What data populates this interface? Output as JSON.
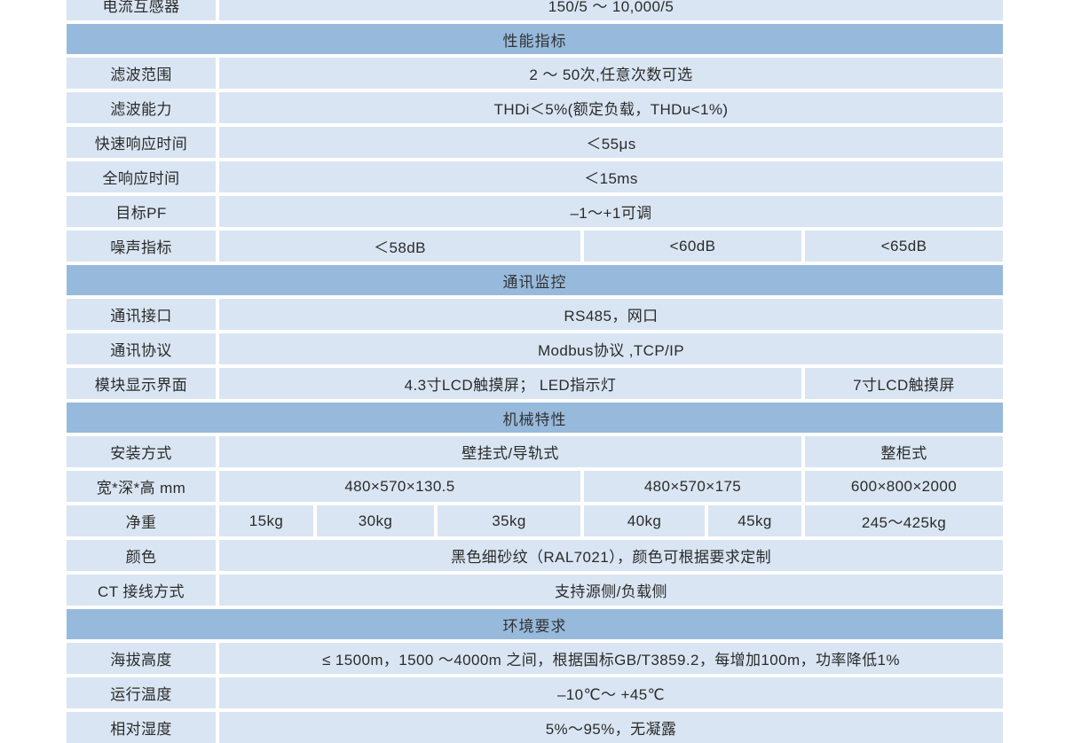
{
  "table": {
    "colors": {
      "section_header_bg": "#97badc",
      "row_bg": "#d9e5f2",
      "text": "#2b2b2b",
      "page_bg": "#ffffff"
    },
    "rows": [
      {
        "kind": "data",
        "label": "电流互感器",
        "cells": [
          {
            "text": "150/5 ～ 10,000/5",
            "span": 6
          }
        ]
      },
      {
        "kind": "header",
        "title": "性能指标"
      },
      {
        "kind": "data",
        "label": "滤波范围",
        "cells": [
          {
            "text": "2 ～ 50次,任意次数可选",
            "span": 6
          }
        ]
      },
      {
        "kind": "data",
        "label": "滤波能力",
        "cells": [
          {
            "text": "THDi＜5%(额定负载，THDu<1%)",
            "span": 6
          }
        ]
      },
      {
        "kind": "data",
        "label": "快速响应时间",
        "cells": [
          {
            "text": "＜55μs",
            "span": 6
          }
        ]
      },
      {
        "kind": "data",
        "label": "全响应时间",
        "cells": [
          {
            "text": "＜15ms",
            "span": 6
          }
        ]
      },
      {
        "kind": "data",
        "label": "目标PF",
        "cells": [
          {
            "text": "–1～+1可调",
            "span": 6
          }
        ]
      },
      {
        "kind": "data",
        "label": "噪声指标",
        "cells": [
          {
            "text": "＜58dB",
            "span": 3
          },
          {
            "text": "<60dB",
            "span": 2
          },
          {
            "text": "<65dB",
            "span": 1
          }
        ]
      },
      {
        "kind": "header",
        "title": "通讯监控"
      },
      {
        "kind": "data",
        "label": "通讯接口",
        "cells": [
          {
            "text": "RS485，网口",
            "span": 6
          }
        ]
      },
      {
        "kind": "data",
        "label": "通讯协议",
        "cells": [
          {
            "text": "Modbus协议 ,TCP/IP",
            "span": 6
          }
        ]
      },
      {
        "kind": "data",
        "label": "模块显示界面",
        "cells": [
          {
            "text": "4.3寸LCD触摸屏； LED指示灯",
            "span": 5
          },
          {
            "text": "7寸LCD触摸屏",
            "span": 1
          }
        ]
      },
      {
        "kind": "header",
        "title": "机械特性"
      },
      {
        "kind": "data",
        "label": "安装方式",
        "cells": [
          {
            "text": "壁挂式/导轨式",
            "span": 5
          },
          {
            "text": "整柜式",
            "span": 1
          }
        ]
      },
      {
        "kind": "data",
        "label": "宽*深*高 mm",
        "cells": [
          {
            "text": "480×570×130.5",
            "span": 3
          },
          {
            "text": "480×570×175",
            "span": 2
          },
          {
            "text": "600×800×2000",
            "span": 1
          }
        ]
      },
      {
        "kind": "data",
        "label": "净重",
        "cells": [
          {
            "text": "15kg",
            "span": 1
          },
          {
            "text": "30kg",
            "span": 1
          },
          {
            "text": "35kg",
            "span": 1
          },
          {
            "text": "40kg",
            "span": 1
          },
          {
            "text": "45kg",
            "span": 1
          },
          {
            "text": "245～425kg",
            "span": 1
          }
        ]
      },
      {
        "kind": "data",
        "label": "颜色",
        "cells": [
          {
            "text": "黑色细砂纹（RAL7021），颜色可根据要求定制",
            "span": 6
          }
        ]
      },
      {
        "kind": "data",
        "label": "CT 接线方式",
        "cells": [
          {
            "text": "支持源侧/负载侧",
            "span": 6
          }
        ]
      },
      {
        "kind": "header",
        "title": "环境要求"
      },
      {
        "kind": "data",
        "label": "海拔高度",
        "cells": [
          {
            "text": "≤ 1500m，1500 ～4000m 之间，根据国标GB/T3859.2，每增加100m，功率降低1%",
            "span": 6
          }
        ]
      },
      {
        "kind": "data",
        "label": "运行温度",
        "cells": [
          {
            "text": "–10℃～ +45℃",
            "span": 6
          }
        ]
      },
      {
        "kind": "data",
        "label": "相对湿度",
        "cells": [
          {
            "text": "5%～95%，无凝露",
            "span": 6
          }
        ]
      }
    ]
  }
}
